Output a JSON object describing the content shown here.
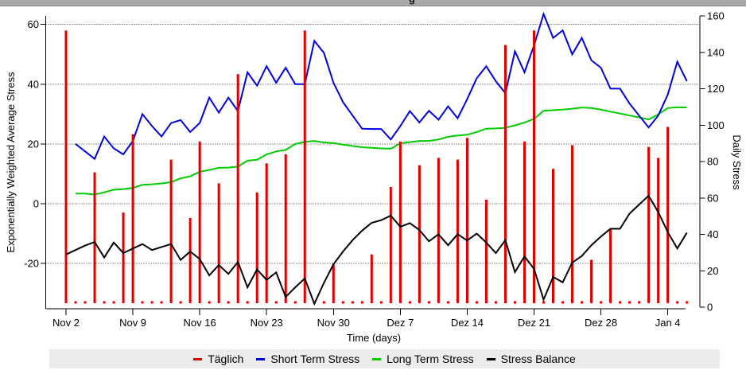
{
  "window": {
    "title_fragment": "g"
  },
  "legend": {
    "items": [
      {
        "label": "Täglich",
        "color": "#dd0000"
      },
      {
        "label": "Short Term Stress",
        "color": "#0000dd"
      },
      {
        "label": "Long Term Stress",
        "color": "#00cc00"
      },
      {
        "label": "Stress Balance",
        "color": "#000000"
      }
    ]
  },
  "chart_data": {
    "type": "mixed",
    "x": {
      "title": "Time (days)",
      "tick_labels": [
        "Nov 2",
        "Nov 9",
        "Nov 16",
        "Nov 23",
        "Nov 30",
        "Dez 7",
        "Dez 14",
        "Dez 21",
        "Dez 28",
        "Jan 4"
      ],
      "tick_positions": [
        0,
        7,
        14,
        21,
        28,
        35,
        42,
        49,
        56,
        63
      ],
      "domain": [
        0,
        66
      ]
    },
    "y_left": {
      "title": "Exponentially Weighted Average Stress",
      "ticks": [
        60,
        40,
        20,
        0,
        -20
      ],
      "range": [
        -35,
        64
      ],
      "grid": true
    },
    "y_right": {
      "title": "Daily Stress",
      "ticks": [
        160,
        140,
        120,
        100,
        80,
        60,
        40,
        20,
        0
      ],
      "range": [
        0,
        160
      ],
      "grid": false
    },
    "baseline_dot_value": 2.5,
    "series": [
      {
        "name": "Täglich",
        "type": "bar",
        "axis": "right",
        "color": "#dd0000",
        "points": [
          [
            0,
            152
          ],
          [
            3,
            74
          ],
          [
            6,
            52
          ],
          [
            7,
            95
          ],
          [
            11,
            81
          ],
          [
            13,
            49
          ],
          [
            14,
            91
          ],
          [
            16,
            68
          ],
          [
            18,
            128
          ],
          [
            20,
            63
          ],
          [
            21,
            79
          ],
          [
            23,
            84
          ],
          [
            25,
            152
          ],
          [
            28,
            24
          ],
          [
            32,
            29
          ],
          [
            34,
            66
          ],
          [
            35,
            91
          ],
          [
            37,
            78
          ],
          [
            39,
            82
          ],
          [
            41,
            81
          ],
          [
            42,
            93
          ],
          [
            44,
            59
          ],
          [
            46,
            144
          ],
          [
            48,
            91
          ],
          [
            49,
            152
          ],
          [
            51,
            76
          ],
          [
            53,
            89
          ],
          [
            55,
            26
          ],
          [
            57,
            43
          ],
          [
            61,
            88
          ],
          [
            62,
            82
          ],
          [
            63,
            99
          ]
        ]
      },
      {
        "name": "Short Term Stress",
        "type": "line",
        "axis": "left",
        "color": "#0000dd",
        "points": [
          [
            1,
            20
          ],
          [
            2,
            17.5
          ],
          [
            3,
            15
          ],
          [
            4,
            22.5
          ],
          [
            5,
            18.5
          ],
          [
            6,
            16.5
          ],
          [
            7,
            21
          ],
          [
            8,
            30
          ],
          [
            9,
            26
          ],
          [
            10,
            22.5
          ],
          [
            11,
            27
          ],
          [
            12,
            28
          ],
          [
            13,
            24
          ],
          [
            14,
            27
          ],
          [
            15,
            35.5
          ],
          [
            16,
            30.5
          ],
          [
            17,
            35.5
          ],
          [
            18,
            31
          ],
          [
            19,
            44
          ],
          [
            20,
            39.5
          ],
          [
            21,
            46
          ],
          [
            22,
            40.5
          ],
          [
            23,
            45.5
          ],
          [
            24,
            40
          ],
          [
            25,
            40
          ],
          [
            26,
            54.5
          ],
          [
            27,
            50.5
          ],
          [
            28,
            40.5
          ],
          [
            29,
            34
          ],
          [
            30,
            29.5
          ],
          [
            31,
            25.1
          ],
          [
            32,
            25
          ],
          [
            33,
            25
          ],
          [
            34,
            21.5
          ],
          [
            35,
            26
          ],
          [
            36,
            31
          ],
          [
            37,
            27.2
          ],
          [
            38,
            31.1
          ],
          [
            39,
            28.1
          ],
          [
            40,
            32.6
          ],
          [
            41,
            28.6
          ],
          [
            42,
            35
          ],
          [
            43,
            42
          ],
          [
            44,
            46
          ],
          [
            45,
            41
          ],
          [
            46,
            37
          ],
          [
            47,
            51
          ],
          [
            48,
            44
          ],
          [
            49,
            53
          ],
          [
            50,
            63.5
          ],
          [
            51,
            55.5
          ],
          [
            52,
            58
          ],
          [
            53,
            50
          ],
          [
            54,
            55.5
          ],
          [
            55,
            48
          ],
          [
            56,
            45.5
          ],
          [
            57,
            38.5
          ],
          [
            58,
            38.5
          ],
          [
            59,
            33.5
          ],
          [
            60,
            29.5
          ],
          [
            61,
            25.5
          ],
          [
            62,
            29.5
          ],
          [
            63,
            36.5
          ],
          [
            64,
            47.5
          ],
          [
            65,
            41
          ]
        ]
      },
      {
        "name": "Long Term Stress",
        "type": "line",
        "axis": "left",
        "color": "#00cc00",
        "points": [
          [
            1,
            3.4
          ],
          [
            2,
            3.4
          ],
          [
            3,
            3.1
          ],
          [
            4,
            3.8
          ],
          [
            5,
            4.7
          ],
          [
            6,
            4.9
          ],
          [
            7,
            5.3
          ],
          [
            8,
            6.3
          ],
          [
            9,
            6.5
          ],
          [
            10,
            6.8
          ],
          [
            11,
            7.2
          ],
          [
            12,
            8.5
          ],
          [
            13,
            9.2
          ],
          [
            14,
            10.7
          ],
          [
            15,
            11.3
          ],
          [
            16,
            12
          ],
          [
            17,
            12.1
          ],
          [
            18,
            12.4
          ],
          [
            19,
            14.4
          ],
          [
            20,
            14.7
          ],
          [
            21,
            16.5
          ],
          [
            22,
            17.5
          ],
          [
            23,
            18
          ],
          [
            24,
            20
          ],
          [
            25,
            20.7
          ],
          [
            26,
            21
          ],
          [
            27,
            20.5
          ],
          [
            28,
            20.3
          ],
          [
            29,
            19.8
          ],
          [
            30,
            19.3
          ],
          [
            31,
            18.9
          ],
          [
            32,
            18.7
          ],
          [
            33,
            18.5
          ],
          [
            34,
            18.4
          ],
          [
            35,
            20.2
          ],
          [
            36,
            20.6
          ],
          [
            37,
            21
          ],
          [
            38,
            21
          ],
          [
            39,
            21.5
          ],
          [
            40,
            22.4
          ],
          [
            41,
            22.8
          ],
          [
            42,
            23.1
          ],
          [
            43,
            24
          ],
          [
            44,
            25.1
          ],
          [
            45,
            25.2
          ],
          [
            46,
            25.4
          ],
          [
            47,
            26.2
          ],
          [
            48,
            27.2
          ],
          [
            49,
            28.4
          ],
          [
            50,
            31.1
          ],
          [
            51,
            31.3
          ],
          [
            52,
            31.5
          ],
          [
            53,
            31.8
          ],
          [
            54,
            32.2
          ],
          [
            55,
            32
          ],
          [
            56,
            31.5
          ],
          [
            57,
            30.8
          ],
          [
            58,
            30.2
          ],
          [
            59,
            29.5
          ],
          [
            60,
            28.9
          ],
          [
            61,
            28.2
          ],
          [
            62,
            29.9
          ],
          [
            63,
            32
          ],
          [
            64,
            32.3
          ],
          [
            65,
            32.2
          ]
        ]
      },
      {
        "name": "Stress Balance",
        "type": "line",
        "axis": "left",
        "color": "#000000",
        "points": [
          [
            0,
            -17
          ],
          [
            1,
            -15.5
          ],
          [
            2,
            -14
          ],
          [
            3,
            -12.8
          ],
          [
            4,
            -18
          ],
          [
            5,
            -13
          ],
          [
            6,
            -16.5
          ],
          [
            7,
            -15
          ],
          [
            8,
            -13.5
          ],
          [
            9,
            -15.5
          ],
          [
            10,
            -14.5
          ],
          [
            11,
            -13.5
          ],
          [
            12,
            -18.8
          ],
          [
            13,
            -16
          ],
          [
            14,
            -18.5
          ],
          [
            15,
            -24
          ],
          [
            16,
            -20.5
          ],
          [
            17,
            -23.5
          ],
          [
            18,
            -19.5
          ],
          [
            19,
            -28
          ],
          [
            20,
            -22
          ],
          [
            21,
            -25.5
          ],
          [
            22,
            -23
          ],
          [
            23,
            -31.2
          ],
          [
            24,
            -28
          ],
          [
            25,
            -25
          ],
          [
            26,
            -33.5
          ],
          [
            27,
            -26.5
          ],
          [
            28,
            -20.3
          ],
          [
            29,
            -16
          ],
          [
            30,
            -12.2
          ],
          [
            31,
            -9
          ],
          [
            32,
            -6.4
          ],
          [
            33,
            -5.5
          ],
          [
            34,
            -4
          ],
          [
            35,
            -7.7
          ],
          [
            36,
            -6.5
          ],
          [
            37,
            -8.8
          ],
          [
            38,
            -12.6
          ],
          [
            39,
            -10.2
          ],
          [
            40,
            -13.9
          ],
          [
            41,
            -10.2
          ],
          [
            42,
            -12.3
          ],
          [
            43,
            -10
          ],
          [
            44,
            -13
          ],
          [
            45,
            -16.5
          ],
          [
            46,
            -12.2
          ],
          [
            47,
            -22.9
          ],
          [
            48,
            -17.6
          ],
          [
            49,
            -21.8
          ],
          [
            50,
            -32.1
          ],
          [
            51,
            -24.5
          ],
          [
            52,
            -26.3
          ],
          [
            53,
            -19.7
          ],
          [
            54,
            -17.5
          ],
          [
            55,
            -13.9
          ],
          [
            56,
            -11
          ],
          [
            57,
            -8.4
          ],
          [
            58,
            -8.4
          ],
          [
            59,
            -3.3
          ],
          [
            60,
            -0.3
          ],
          [
            61,
            2.7
          ],
          [
            62,
            -2.8
          ],
          [
            63,
            -9.5
          ],
          [
            64,
            -15
          ],
          [
            65,
            -9.7
          ]
        ]
      }
    ]
  }
}
